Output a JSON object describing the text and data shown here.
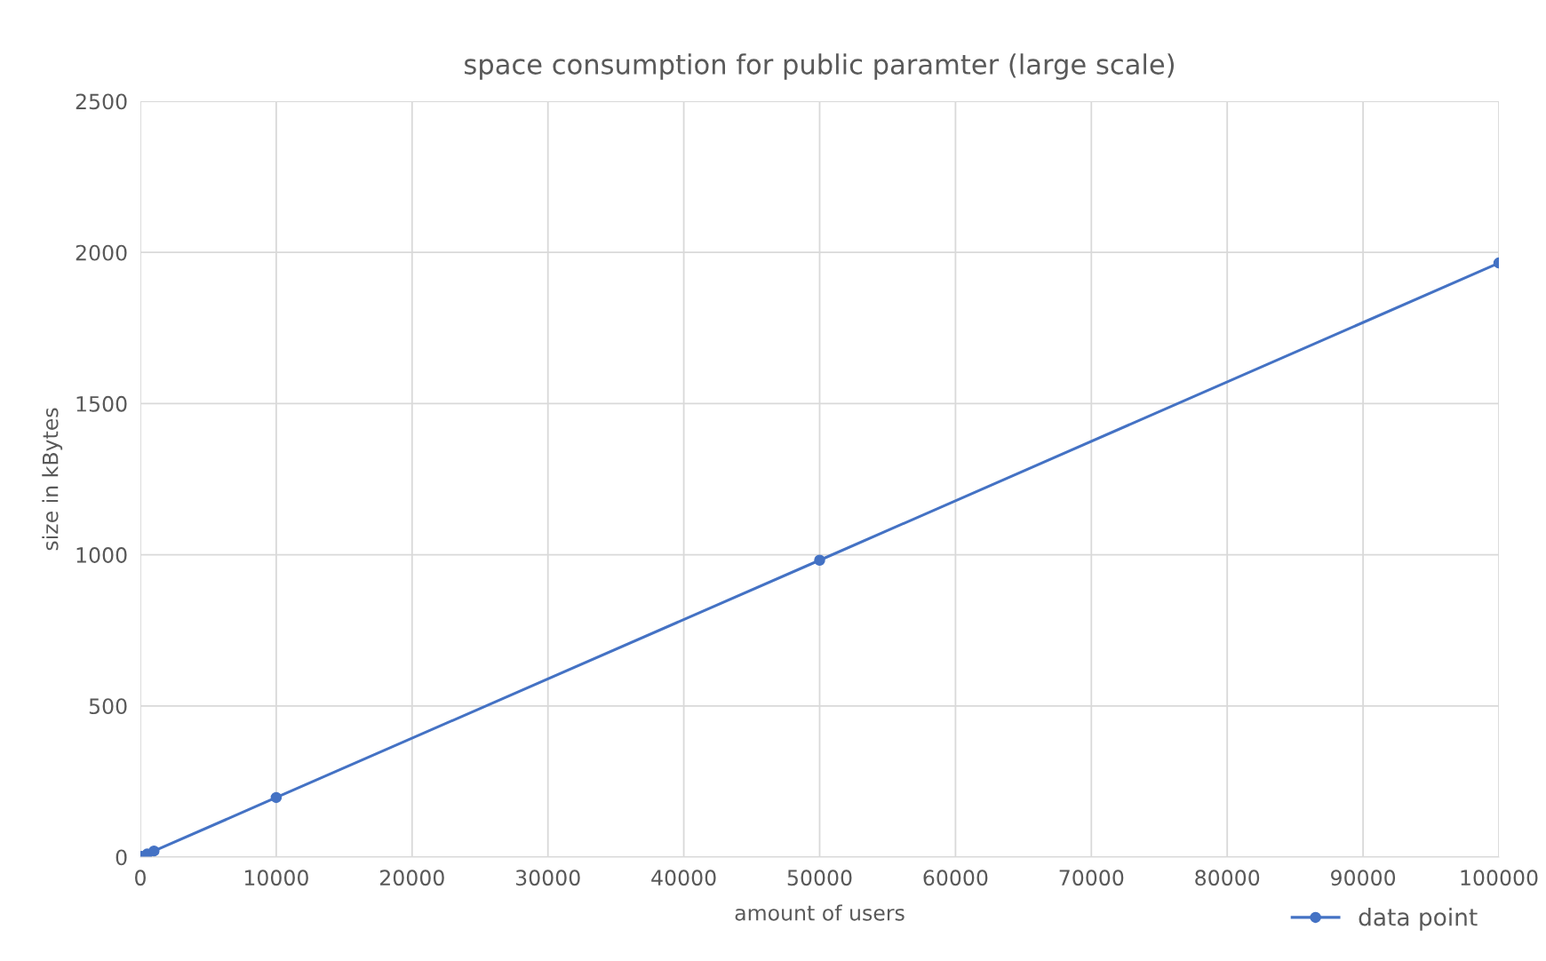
{
  "chart_data": {
    "type": "line",
    "title": "space consumption for public paramter (large scale)",
    "xlabel": "amount of users",
    "ylabel": "size in kBytes",
    "x": [
      0,
      100,
      500,
      1000,
      10000,
      50000,
      100000
    ],
    "series": [
      {
        "name": "data point",
        "color": "#4472c4",
        "values": [
          0,
          2,
          10,
          20,
          197,
          982,
          1965
        ]
      }
    ],
    "xlim": [
      0,
      100000
    ],
    "xticks": [
      0,
      10000,
      20000,
      30000,
      40000,
      50000,
      60000,
      70000,
      80000,
      90000,
      100000
    ],
    "ylim": [
      0,
      2500
    ],
    "yticks": [
      0,
      500,
      1000,
      1500,
      2000,
      2500
    ],
    "grid": true,
    "legend": "bottom right",
    "marker": "circle",
    "line_style": "solid"
  }
}
